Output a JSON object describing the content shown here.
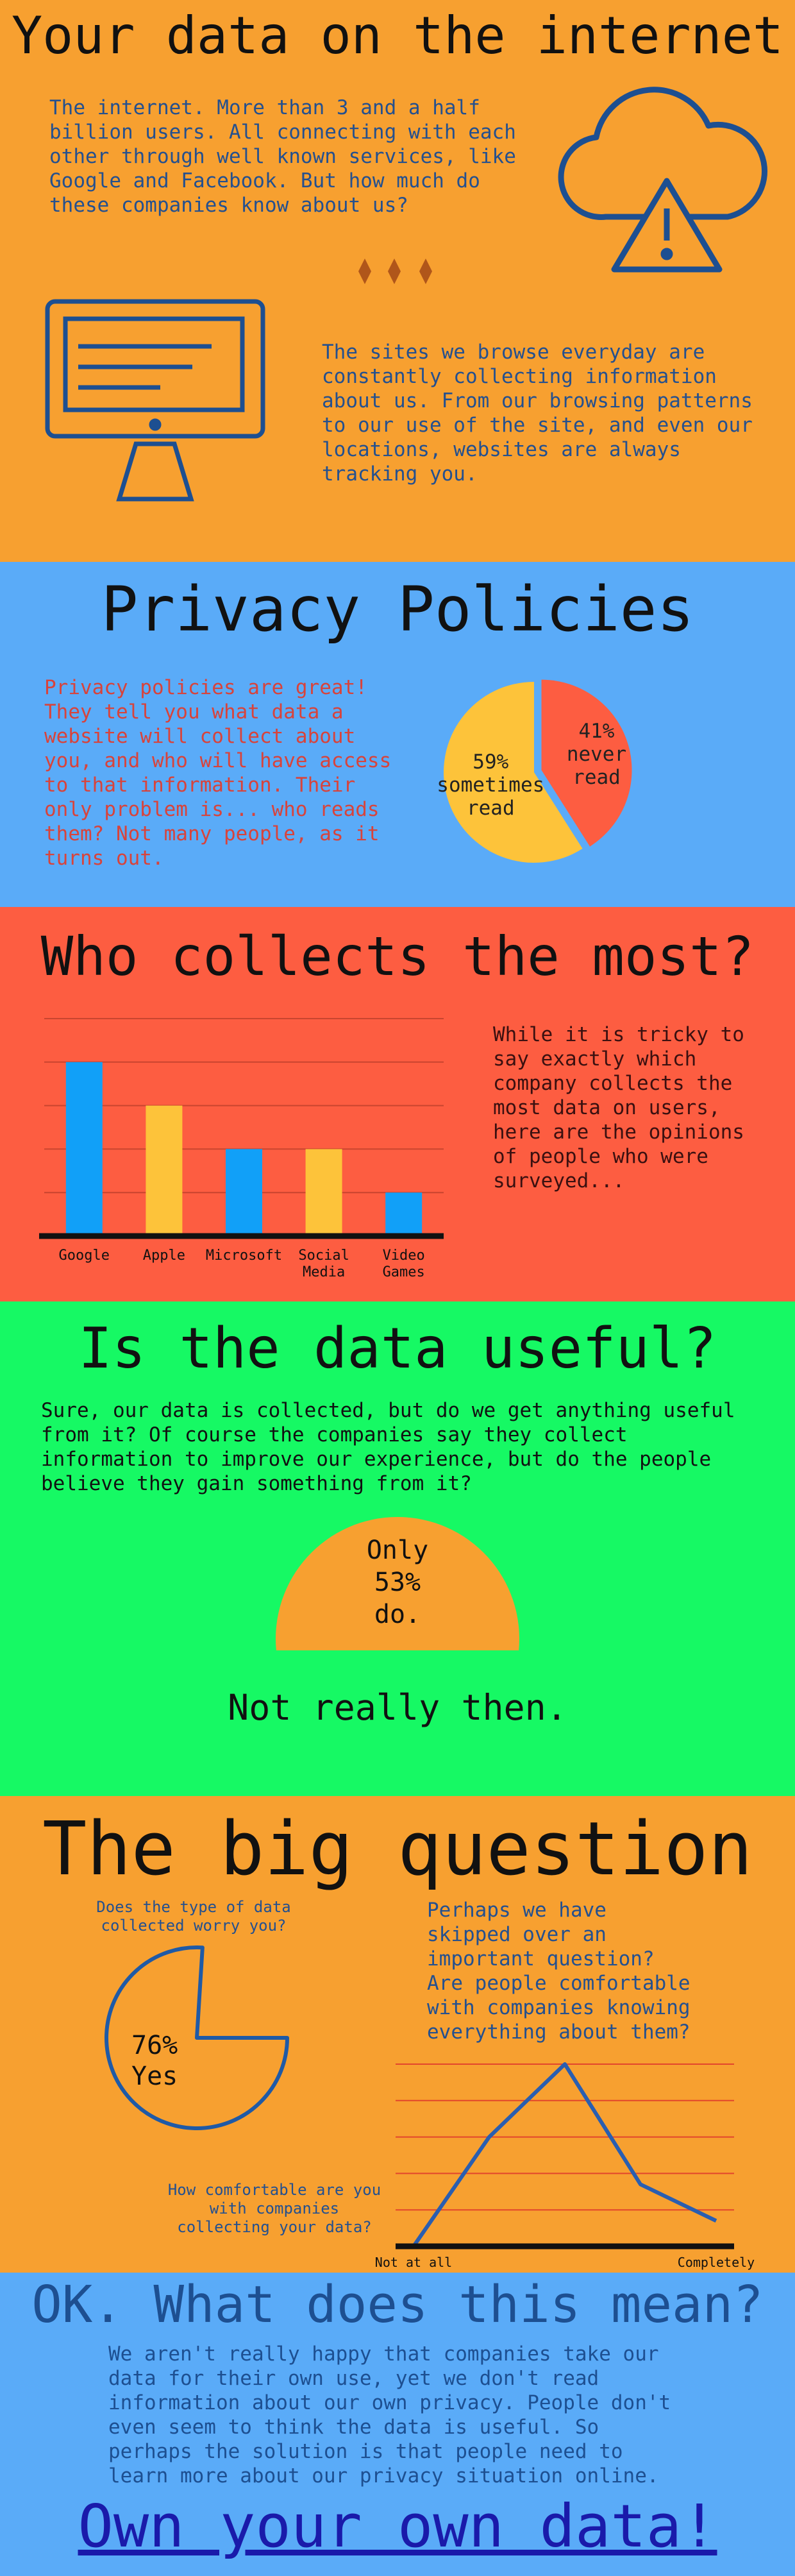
{
  "header": {
    "title": "Your data on the internet",
    "intro": "The internet. More than 3 and a half billion users. All connecting with each other through well known services, like Google and Facebook. But how much do these companies know about us?",
    "tracking": "The sites we browse everyday are constantly collecting information about us. From our browsing patterns to our use of the site, and even our locations, websites are always tracking you."
  },
  "privacy": {
    "title": "Privacy Policies",
    "text": "Privacy policies are great! They tell you what data a website will collect about you, and who will have access to that information. Their only problem is... who reads them? Not many people, as it turns out.",
    "chart": {
      "type": "pie",
      "categories": [
        "never read",
        "sometimes read"
      ],
      "values": [
        41,
        59
      ],
      "value_labels": [
        "41%",
        "59%"
      ],
      "colors": [
        "#fd5d41",
        "#fdc33a"
      ]
    }
  },
  "collectors": {
    "title": "Who collects the most?",
    "text": "While it is tricky to say exactly which company collects the most data on users, here are the opinions of people who were surveyed...",
    "chart": {
      "type": "bar",
      "categories": [
        "Google",
        "Apple",
        "Microsoft",
        "Social Media",
        "Video Games"
      ],
      "values": [
        4,
        3,
        2,
        2,
        1
      ],
      "colors": [
        "#11a0f8",
        "#fdc33a",
        "#11a0f8",
        "#fdc33a",
        "#11a0f8"
      ],
      "ylim": [
        0,
        5
      ],
      "yticks": [
        0,
        1,
        2,
        3,
        4,
        5
      ],
      "grid": true
    }
  },
  "usefulness": {
    "title": "Is the data useful?",
    "text": "Sure, our data is collected, but do we get anything useful from it? Of course the companies say they collect information to improve our experience, but do the people believe they gain something from it?",
    "chart": {
      "type": "pie",
      "values": [
        53
      ],
      "value_labels": [
        "Only 53% do."
      ],
      "color": "#f7a030"
    },
    "verdict": "Not really then."
  },
  "big_question": {
    "title": "The big question",
    "pie": {
      "type": "pie",
      "title": "Does the type of data collected worry you?",
      "values": [
        76
      ],
      "value_labels": [
        "76% Yes"
      ],
      "color": "#1f5aa6"
    },
    "text": "Perhaps we have skipped over an important question? Are people comfortable with companies knowing everything about them?",
    "line": {
      "type": "line",
      "title": "How comfortable are you with companies collecting your data?",
      "categories": [
        "Not at all",
        null,
        null,
        null,
        "Completely"
      ],
      "values": [
        0,
        3,
        5,
        1.7,
        0.7
      ],
      "ylim": [
        0,
        5
      ],
      "yticks": [
        0,
        1,
        2,
        3,
        4,
        5
      ],
      "grid": true,
      "color": "#2a5eb0"
    }
  },
  "conclusion": {
    "title": "OK. What does this mean?",
    "text": "We aren't really happy that companies take our data for their own use, yet we don't read information about our own privacy. People don't even seem to think the data is useful. So perhaps the solution is that people need to learn more about our privacy situation online.",
    "link": "Own your own data!"
  }
}
